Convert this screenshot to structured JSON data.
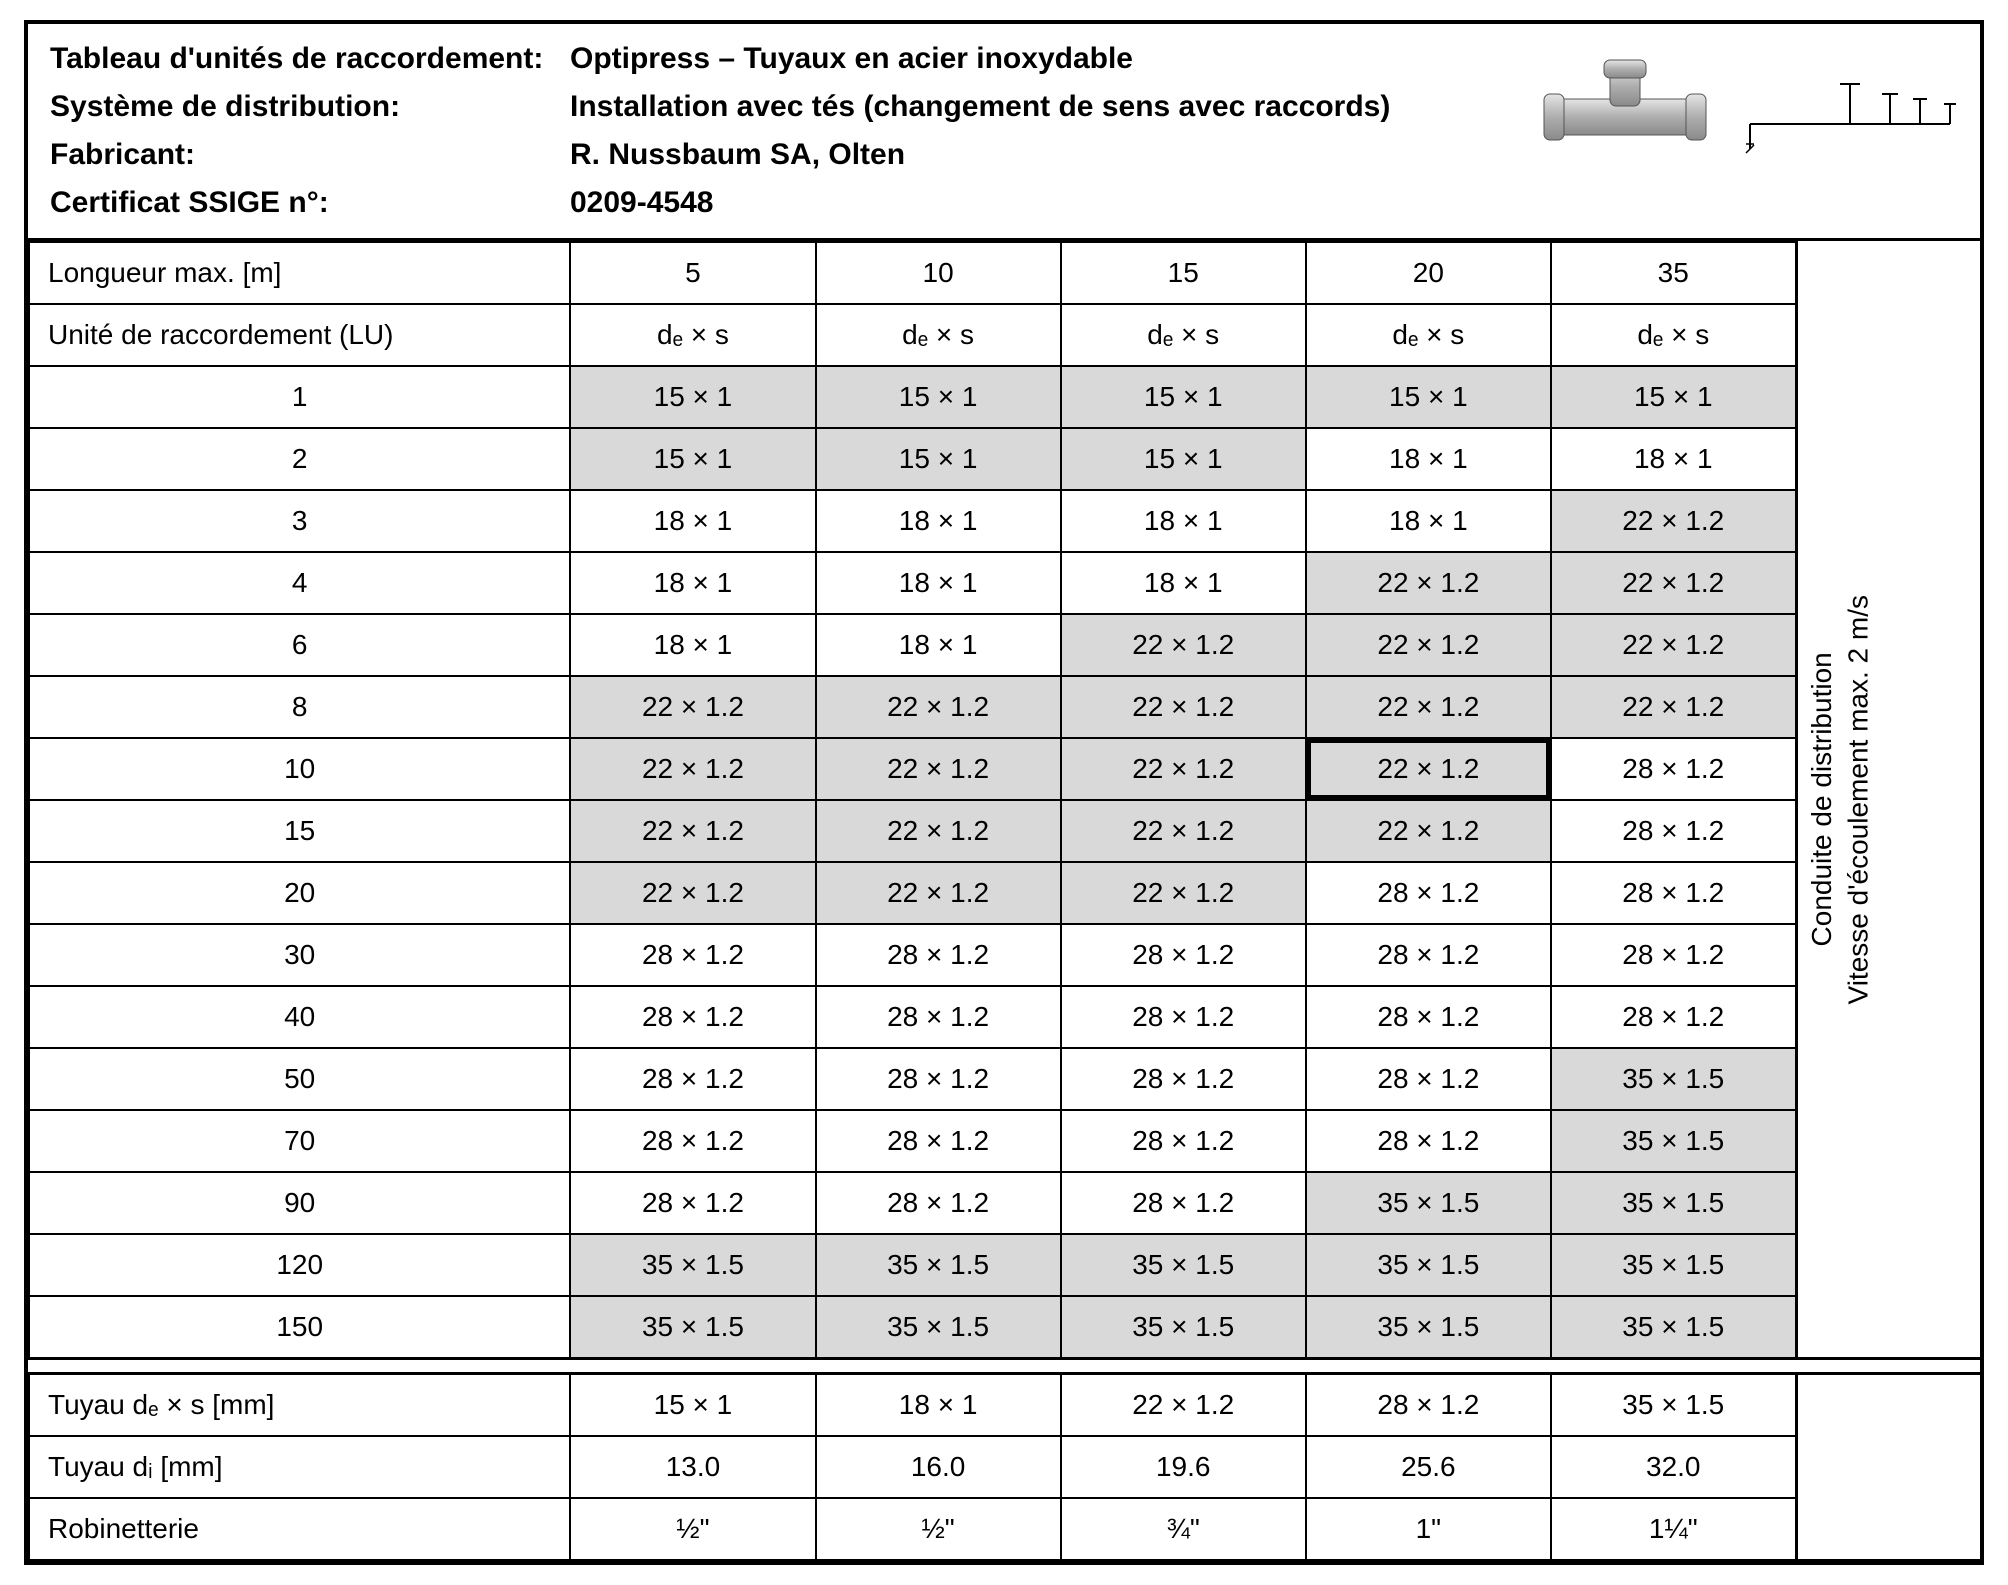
{
  "header": {
    "labels": {
      "tableau": "Tableau d'unités de raccordement:",
      "systeme": "Système de distribution:",
      "fabricant": "Fabricant:",
      "certificat": "Certificat SSIGE n°:"
    },
    "values": {
      "tableau": "Optipress – Tuyaux en acier inoxydable",
      "systeme": "Installation avec tés (changement de sens avec raccords)",
      "fabricant": "R. Nussbaum SA, Olten",
      "certificat": "0209-4548"
    }
  },
  "table": {
    "longueur_label": "Longueur max. [m]",
    "lu_label": "Unité de raccordement (LU)",
    "dexs": "dₑ × s",
    "lengths": [
      "5",
      "10",
      "15",
      "20",
      "35"
    ],
    "side_line1": "Conduite de distribution",
    "side_line2": "Vitesse d'écoulement max. 2 m/s",
    "rows": [
      {
        "lu": "1",
        "cells": [
          {
            "v": "15 × 1",
            "s": 1
          },
          {
            "v": "15 × 1",
            "s": 1
          },
          {
            "v": "15 × 1",
            "s": 1
          },
          {
            "v": "15 × 1",
            "s": 1
          },
          {
            "v": "15 × 1",
            "s": 1
          }
        ]
      },
      {
        "lu": "2",
        "cells": [
          {
            "v": "15 × 1",
            "s": 1
          },
          {
            "v": "15 × 1",
            "s": 1
          },
          {
            "v": "15 × 1",
            "s": 1
          },
          {
            "v": "18 × 1",
            "s": 0
          },
          {
            "v": "18 × 1",
            "s": 0
          }
        ]
      },
      {
        "lu": "3",
        "cells": [
          {
            "v": "18 × 1",
            "s": 0
          },
          {
            "v": "18 × 1",
            "s": 0
          },
          {
            "v": "18 × 1",
            "s": 0
          },
          {
            "v": "18 × 1",
            "s": 0
          },
          {
            "v": "22 × 1.2",
            "s": 1
          }
        ]
      },
      {
        "lu": "4",
        "cells": [
          {
            "v": "18 × 1",
            "s": 0
          },
          {
            "v": "18 × 1",
            "s": 0
          },
          {
            "v": "18 × 1",
            "s": 0
          },
          {
            "v": "22 × 1.2",
            "s": 1
          },
          {
            "v": "22 × 1.2",
            "s": 1
          }
        ]
      },
      {
        "lu": "6",
        "cells": [
          {
            "v": "18 × 1",
            "s": 0
          },
          {
            "v": "18 × 1",
            "s": 0
          },
          {
            "v": "22 × 1.2",
            "s": 1
          },
          {
            "v": "22 × 1.2",
            "s": 1
          },
          {
            "v": "22 × 1.2",
            "s": 1
          }
        ]
      },
      {
        "lu": "8",
        "cells": [
          {
            "v": "22 × 1.2",
            "s": 1
          },
          {
            "v": "22 × 1.2",
            "s": 1
          },
          {
            "v": "22 × 1.2",
            "s": 1
          },
          {
            "v": "22 × 1.2",
            "s": 1
          },
          {
            "v": "22 × 1.2",
            "s": 1
          }
        ]
      },
      {
        "lu": "10",
        "cells": [
          {
            "v": "22 × 1.2",
            "s": 1
          },
          {
            "v": "22 × 1.2",
            "s": 1
          },
          {
            "v": "22 × 1.2",
            "s": 1
          },
          {
            "v": "22 × 1.2",
            "s": 1,
            "hl": 1
          },
          {
            "v": "28 × 1.2",
            "s": 0
          }
        ]
      },
      {
        "lu": "15",
        "cells": [
          {
            "v": "22 × 1.2",
            "s": 1
          },
          {
            "v": "22 × 1.2",
            "s": 1
          },
          {
            "v": "22 × 1.2",
            "s": 1
          },
          {
            "v": "22 × 1.2",
            "s": 1
          },
          {
            "v": "28 × 1.2",
            "s": 0
          }
        ]
      },
      {
        "lu": "20",
        "cells": [
          {
            "v": "22 × 1.2",
            "s": 1
          },
          {
            "v": "22 × 1.2",
            "s": 1
          },
          {
            "v": "22 × 1.2",
            "s": 1
          },
          {
            "v": "28 × 1.2",
            "s": 0
          },
          {
            "v": "28 × 1.2",
            "s": 0
          }
        ]
      },
      {
        "lu": "30",
        "cells": [
          {
            "v": "28 × 1.2",
            "s": 0
          },
          {
            "v": "28 × 1.2",
            "s": 0
          },
          {
            "v": "28 × 1.2",
            "s": 0
          },
          {
            "v": "28 × 1.2",
            "s": 0
          },
          {
            "v": "28 × 1.2",
            "s": 0
          }
        ]
      },
      {
        "lu": "40",
        "cells": [
          {
            "v": "28 × 1.2",
            "s": 0
          },
          {
            "v": "28 × 1.2",
            "s": 0
          },
          {
            "v": "28 × 1.2",
            "s": 0
          },
          {
            "v": "28 × 1.2",
            "s": 0
          },
          {
            "v": "28 × 1.2",
            "s": 0
          }
        ]
      },
      {
        "lu": "50",
        "cells": [
          {
            "v": "28 × 1.2",
            "s": 0
          },
          {
            "v": "28 × 1.2",
            "s": 0
          },
          {
            "v": "28 × 1.2",
            "s": 0
          },
          {
            "v": "28 × 1.2",
            "s": 0
          },
          {
            "v": "35 × 1.5",
            "s": 1
          }
        ]
      },
      {
        "lu": "70",
        "cells": [
          {
            "v": "28 × 1.2",
            "s": 0
          },
          {
            "v": "28 × 1.2",
            "s": 0
          },
          {
            "v": "28 × 1.2",
            "s": 0
          },
          {
            "v": "28 × 1.2",
            "s": 0
          },
          {
            "v": "35 × 1.5",
            "s": 1
          }
        ]
      },
      {
        "lu": "90",
        "cells": [
          {
            "v": "28 × 1.2",
            "s": 0
          },
          {
            "v": "28 × 1.2",
            "s": 0
          },
          {
            "v": "28 × 1.2",
            "s": 0
          },
          {
            "v": "35 × 1.5",
            "s": 1
          },
          {
            "v": "35 × 1.5",
            "s": 1
          }
        ]
      },
      {
        "lu": "120",
        "cells": [
          {
            "v": "35 × 1.5",
            "s": 1
          },
          {
            "v": "35 × 1.5",
            "s": 1
          },
          {
            "v": "35 × 1.5",
            "s": 1
          },
          {
            "v": "35 × 1.5",
            "s": 1
          },
          {
            "v": "35 × 1.5",
            "s": 1
          }
        ]
      },
      {
        "lu": "150",
        "cells": [
          {
            "v": "35 × 1.5",
            "s": 1
          },
          {
            "v": "35 × 1.5",
            "s": 1
          },
          {
            "v": "35 × 1.5",
            "s": 1
          },
          {
            "v": "35 × 1.5",
            "s": 1
          },
          {
            "v": "35 × 1.5",
            "s": 1
          }
        ]
      }
    ],
    "footer": [
      {
        "label": "Tuyau dₑ × s [mm]",
        "cells": [
          "15 × 1",
          "18 × 1",
          "22 × 1.2",
          "28 × 1.2",
          "35 × 1.5"
        ]
      },
      {
        "label": "Tuyau dᵢ [mm]",
        "cells": [
          "13.0",
          "16.0",
          "19.6",
          "25.6",
          "32.0"
        ]
      },
      {
        "label": "Robinetterie",
        "cells": [
          "½\"",
          "½\"",
          "¾\"",
          "1\"",
          "1¼\""
        ]
      }
    ]
  },
  "colors": {
    "shaded": "#d9d9d9",
    "border": "#000000",
    "background": "#ffffff"
  }
}
